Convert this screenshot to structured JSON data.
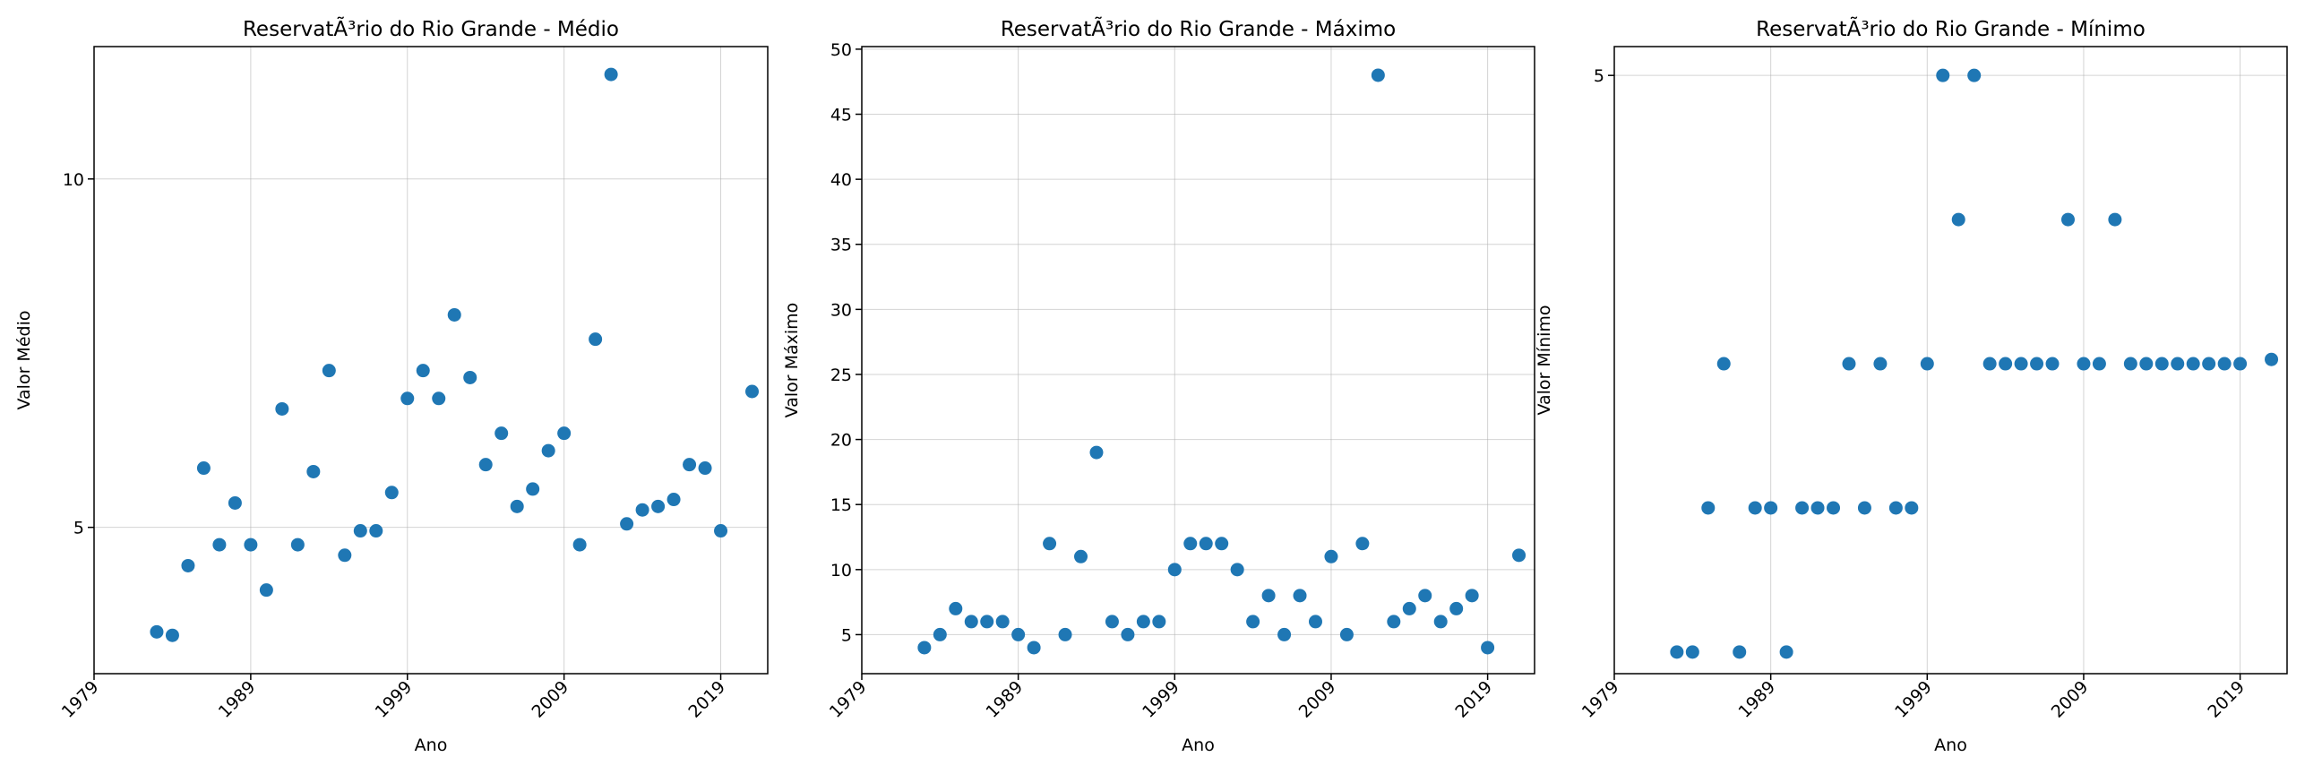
{
  "marker_color": "#1f77b4",
  "chart_data": [
    {
      "type": "scatter",
      "title": "ReservatÃ³rio do Rio Grande - Médio",
      "xlabel": "Ano",
      "ylabel": "Valor Médio",
      "xlim": [
        1979,
        2022
      ],
      "ylim": [
        2.9,
        11.9
      ],
      "xticks": [
        1979,
        1989,
        1999,
        2009,
        2019
      ],
      "yticks": [
        5,
        10
      ],
      "grid": true,
      "points": [
        {
          "x": 1983,
          "y": 3.5
        },
        {
          "x": 1984,
          "y": 3.45
        },
        {
          "x": 1985,
          "y": 4.45
        },
        {
          "x": 1986,
          "y": 5.85
        },
        {
          "x": 1987,
          "y": 4.75
        },
        {
          "x": 1988,
          "y": 5.35
        },
        {
          "x": 1989,
          "y": 4.75
        },
        {
          "x": 1990,
          "y": 4.1
        },
        {
          "x": 1991,
          "y": 6.7
        },
        {
          "x": 1992,
          "y": 4.75
        },
        {
          "x": 1993,
          "y": 5.8
        },
        {
          "x": 1994,
          "y": 7.25
        },
        {
          "x": 1995,
          "y": 4.6
        },
        {
          "x": 1996,
          "y": 4.95
        },
        {
          "x": 1997,
          "y": 4.95
        },
        {
          "x": 1998,
          "y": 5.5
        },
        {
          "x": 1999,
          "y": 6.85
        },
        {
          "x": 2000,
          "y": 7.25
        },
        {
          "x": 2001,
          "y": 6.85
        },
        {
          "x": 2002,
          "y": 8.05
        },
        {
          "x": 2003,
          "y": 7.15
        },
        {
          "x": 2004,
          "y": 5.9
        },
        {
          "x": 2005,
          "y": 6.35
        },
        {
          "x": 2006,
          "y": 5.3
        },
        {
          "x": 2007,
          "y": 5.55
        },
        {
          "x": 2008,
          "y": 6.1
        },
        {
          "x": 2009,
          "y": 6.35
        },
        {
          "x": 2010,
          "y": 4.75
        },
        {
          "x": 2011,
          "y": 7.7
        },
        {
          "x": 2012,
          "y": 11.5
        },
        {
          "x": 2013,
          "y": 5.05
        },
        {
          "x": 2014,
          "y": 5.25
        },
        {
          "x": 2015,
          "y": 5.3
        },
        {
          "x": 2016,
          "y": 5.4
        },
        {
          "x": 2017,
          "y": 5.9
        },
        {
          "x": 2018,
          "y": 5.85
        },
        {
          "x": 2019,
          "y": 4.95
        },
        {
          "x": 2021,
          "y": 6.95
        }
      ]
    },
    {
      "type": "scatter",
      "title": "ReservatÃ³rio do Rio Grande - Máximo",
      "xlabel": "Ano",
      "ylabel": "Valor Máximo",
      "xlim": [
        1979,
        2022
      ],
      "ylim": [
        2,
        50.2
      ],
      "xticks": [
        1979,
        1989,
        1999,
        2009,
        2019
      ],
      "yticks": [
        5,
        10,
        15,
        20,
        25,
        30,
        35,
        40,
        45,
        50
      ],
      "grid": true,
      "points": [
        {
          "x": 1983,
          "y": 4
        },
        {
          "x": 1984,
          "y": 5
        },
        {
          "x": 1985,
          "y": 7
        },
        {
          "x": 1986,
          "y": 6
        },
        {
          "x": 1987,
          "y": 6
        },
        {
          "x": 1988,
          "y": 6
        },
        {
          "x": 1989,
          "y": 5
        },
        {
          "x": 1990,
          "y": 4
        },
        {
          "x": 1991,
          "y": 12
        },
        {
          "x": 1992,
          "y": 5
        },
        {
          "x": 1993,
          "y": 11
        },
        {
          "x": 1994,
          "y": 19
        },
        {
          "x": 1995,
          "y": 6
        },
        {
          "x": 1996,
          "y": 5
        },
        {
          "x": 1997,
          "y": 6
        },
        {
          "x": 1998,
          "y": 6
        },
        {
          "x": 1999,
          "y": 10
        },
        {
          "x": 2000,
          "y": 12
        },
        {
          "x": 2001,
          "y": 12
        },
        {
          "x": 2002,
          "y": 12
        },
        {
          "x": 2003,
          "y": 10
        },
        {
          "x": 2004,
          "y": 6
        },
        {
          "x": 2005,
          "y": 8
        },
        {
          "x": 2006,
          "y": 5
        },
        {
          "x": 2007,
          "y": 8
        },
        {
          "x": 2008,
          "y": 6
        },
        {
          "x": 2009,
          "y": 11
        },
        {
          "x": 2010,
          "y": 5
        },
        {
          "x": 2011,
          "y": 12
        },
        {
          "x": 2012,
          "y": 48
        },
        {
          "x": 2013,
          "y": 6
        },
        {
          "x": 2014,
          "y": 7
        },
        {
          "x": 2015,
          "y": 8
        },
        {
          "x": 2016,
          "y": 6
        },
        {
          "x": 2017,
          "y": 7
        },
        {
          "x": 2018,
          "y": 8
        },
        {
          "x": 2019,
          "y": 4
        },
        {
          "x": 2021,
          "y": 11.1
        }
      ]
    },
    {
      "type": "scatter",
      "title": "ReservatÃ³rio do Rio Grande - Mínimo",
      "xlabel": "Ano",
      "ylabel": "Valor Mínimo",
      "xlim": [
        1979,
        2022
      ],
      "ylim": [
        0.85,
        5.2
      ],
      "xticks": [
        1979,
        1989,
        1999,
        2009,
        2019
      ],
      "yticks": [
        5
      ],
      "grid": true,
      "points": [
        {
          "x": 1983,
          "y": 1
        },
        {
          "x": 1984,
          "y": 1
        },
        {
          "x": 1985,
          "y": 2
        },
        {
          "x": 1986,
          "y": 3
        },
        {
          "x": 1987,
          "y": 1
        },
        {
          "x": 1988,
          "y": 2
        },
        {
          "x": 1989,
          "y": 2
        },
        {
          "x": 1990,
          "y": 1
        },
        {
          "x": 1991,
          "y": 2
        },
        {
          "x": 1992,
          "y": 2
        },
        {
          "x": 1993,
          "y": 2
        },
        {
          "x": 1994,
          "y": 3
        },
        {
          "x": 1995,
          "y": 2
        },
        {
          "x": 1996,
          "y": 3
        },
        {
          "x": 1997,
          "y": 2
        },
        {
          "x": 1998,
          "y": 2
        },
        {
          "x": 1999,
          "y": 3
        },
        {
          "x": 2000,
          "y": 5
        },
        {
          "x": 2001,
          "y": 4
        },
        {
          "x": 2002,
          "y": 5
        },
        {
          "x": 2003,
          "y": 3
        },
        {
          "x": 2004,
          "y": 3
        },
        {
          "x": 2005,
          "y": 3
        },
        {
          "x": 2006,
          "y": 3
        },
        {
          "x": 2007,
          "y": 3
        },
        {
          "x": 2008,
          "y": 4
        },
        {
          "x": 2009,
          "y": 3
        },
        {
          "x": 2010,
          "y": 3
        },
        {
          "x": 2011,
          "y": 4
        },
        {
          "x": 2012,
          "y": 3
        },
        {
          "x": 2013,
          "y": 3
        },
        {
          "x": 2014,
          "y": 3
        },
        {
          "x": 2015,
          "y": 3
        },
        {
          "x": 2016,
          "y": 3
        },
        {
          "x": 2017,
          "y": 3
        },
        {
          "x": 2018,
          "y": 3
        },
        {
          "x": 2019,
          "y": 3
        },
        {
          "x": 2021,
          "y": 3.03
        }
      ]
    }
  ]
}
